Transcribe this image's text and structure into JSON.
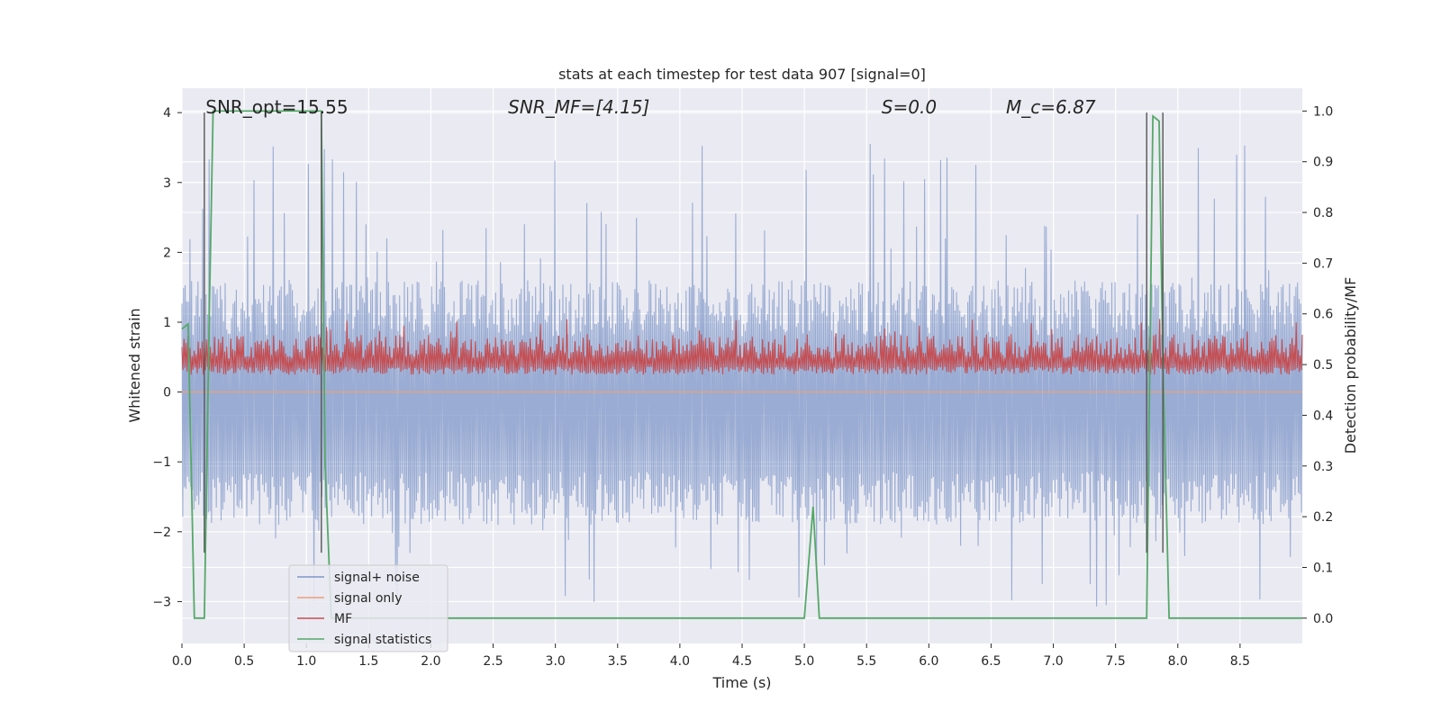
{
  "chart_data": {
    "type": "line",
    "title": "stats at each timestep for test data 907 [signal=0]",
    "xlabel": "Time (s)",
    "ylabel": "Whitened strain",
    "y2label": "Detection probability/MF",
    "xlim": [
      0.0,
      9.0
    ],
    "ylim": [
      -3.6,
      4.35
    ],
    "y2lim": [
      -0.05,
      1.045
    ],
    "xticks": [
      0.0,
      0.5,
      1.0,
      1.5,
      2.0,
      2.5,
      3.0,
      3.5,
      4.0,
      4.5,
      5.0,
      5.5,
      6.0,
      6.5,
      7.0,
      7.5,
      8.0,
      8.5
    ],
    "xtick_labels": [
      "0.0",
      "0.5",
      "1.0",
      "1.5",
      "2.0",
      "2.5",
      "3.0",
      "3.5",
      "4.0",
      "4.5",
      "5.0",
      "5.5",
      "6.0",
      "6.5",
      "7.0",
      "7.5",
      "8.0",
      "8.5"
    ],
    "yticks": [
      -3,
      -2,
      -1,
      0,
      1,
      2,
      3,
      4
    ],
    "ytick_labels": [
      "−3",
      "−2",
      "−1",
      "0",
      "1",
      "2",
      "3",
      "4"
    ],
    "y2ticks": [
      0.0,
      0.1,
      0.2,
      0.3,
      0.4,
      0.5,
      0.6,
      0.7,
      0.8,
      0.9,
      1.0
    ],
    "y2tick_labels": [
      "0.0",
      "0.1",
      "0.2",
      "0.3",
      "0.4",
      "0.5",
      "0.6",
      "0.7",
      "0.8",
      "0.9",
      "1.0"
    ],
    "grid": true,
    "legend_location": "lower-left",
    "annotations": [
      {
        "text": "SNR_opt=15.55",
        "x": 0.19,
        "y": 4.0
      },
      {
        "text": "SNR_MF=[4.15]",
        "x": 2.62,
        "y": 4.0
      },
      {
        "text": "S=0.0",
        "x": 5.62,
        "y": 4.0
      },
      {
        "text": "M_c=6.87",
        "x": 6.62,
        "y": 4.0
      }
    ],
    "vlines": [
      0.18,
      1.12,
      7.75,
      7.88
    ],
    "vline_range": [
      -2.3,
      4.0
    ],
    "series": [
      {
        "name": "signal+ noise",
        "color": "#7f97c8",
        "kind": "noise",
        "center": -0.2,
        "envelope_up": 1.6,
        "envelope_down": -1.9,
        "peak_up": 3.9,
        "peak_down": -3.3
      },
      {
        "name": "signal only",
        "color": "#e8a07d",
        "kind": "flat",
        "value": 0.0
      },
      {
        "name": "MF",
        "color": "#c44e52",
        "kind": "band",
        "axis": "y2",
        "center": 0.5,
        "low": 0.48,
        "high": 0.56
      },
      {
        "name": "signal statistics",
        "color": "#55a868",
        "axis": "y2",
        "x": [
          0.0,
          0.05,
          0.1,
          0.13,
          0.18,
          0.22,
          0.25,
          0.5,
          1.0,
          1.12,
          1.15,
          1.2,
          1.3,
          2.0,
          3.0,
          4.0,
          4.5,
          5.0,
          5.07,
          5.12,
          5.5,
          6.0,
          7.0,
          7.5,
          7.75,
          7.8,
          7.85,
          7.88,
          7.93,
          8.0,
          8.5,
          9.0
        ],
        "y": [
          0.57,
          0.58,
          0.0,
          0.0,
          0.0,
          0.6,
          1.0,
          1.0,
          1.0,
          1.0,
          0.3,
          0.0,
          0.0,
          0.0,
          0.0,
          0.0,
          0.0,
          0.0,
          0.22,
          0.0,
          0.0,
          0.0,
          0.0,
          0.0,
          0.0,
          0.99,
          0.98,
          0.5,
          0.0,
          0.0,
          0.0,
          0.0
        ]
      }
    ]
  }
}
